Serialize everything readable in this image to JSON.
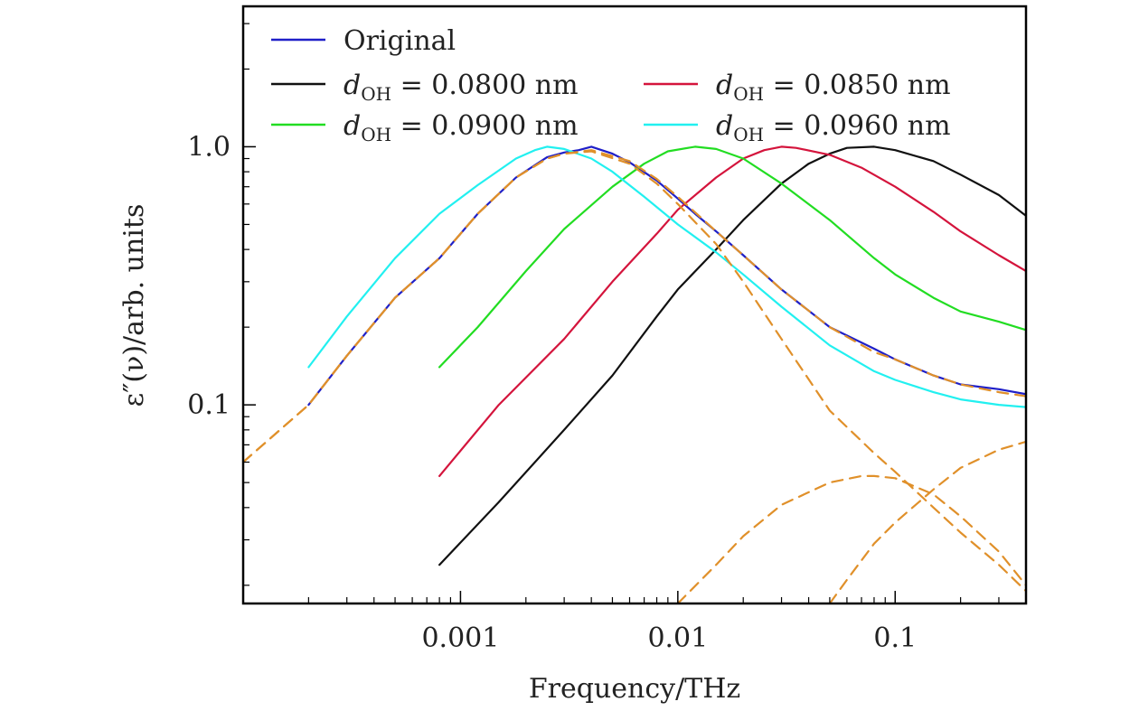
{
  "chart_data": {
    "type": "line",
    "title": "",
    "xlabel": "Frequency/THz",
    "ylabel": "ε″(ν)/arb. units",
    "x_scale": "log",
    "y_scale": "log",
    "xlim": [
      0.0001,
      0.4
    ],
    "ylim": [
      0.017,
      3.5
    ],
    "grid": false,
    "legend_position": "top",
    "x_ticks": [
      {
        "value": 0.001,
        "label": "0.001"
      },
      {
        "value": 0.01,
        "label": "0.01"
      },
      {
        "value": 0.1,
        "label": "0.1"
      }
    ],
    "y_ticks": [
      {
        "value": 0.1,
        "label": "0.1"
      },
      {
        "value": 1.0,
        "label": "1.0"
      }
    ],
    "series": [
      {
        "name": "Original",
        "name_base": "",
        "name_rest": "Original",
        "color": "#1f1fc8",
        "style": "solid",
        "x": [
          0.0002,
          0.0003,
          0.0005,
          0.0008,
          0.0012,
          0.0018,
          0.0025,
          0.003,
          0.0035,
          0.004,
          0.005,
          0.006,
          0.008,
          0.01,
          0.012,
          0.015,
          0.02,
          0.03,
          0.05,
          0.08,
          0.1,
          0.15,
          0.2,
          0.3,
          0.4
        ],
        "y": [
          0.1,
          0.155,
          0.26,
          0.37,
          0.55,
          0.76,
          0.91,
          0.95,
          0.97,
          1.0,
          0.94,
          0.87,
          0.74,
          0.63,
          0.55,
          0.47,
          0.38,
          0.28,
          0.2,
          0.165,
          0.15,
          0.13,
          0.12,
          0.115,
          0.11
        ]
      },
      {
        "name": "d_OH = 0.0800 nm",
        "name_base": "d",
        "name_sub": "OH",
        "name_rest": " = 0.0800 nm",
        "color": "#111111",
        "style": "solid",
        "x": [
          0.0008,
          0.0015,
          0.003,
          0.005,
          0.008,
          0.01,
          0.015,
          0.02,
          0.03,
          0.04,
          0.05,
          0.06,
          0.08,
          0.1,
          0.15,
          0.2,
          0.3,
          0.4
        ],
        "y": [
          0.024,
          0.042,
          0.08,
          0.13,
          0.22,
          0.28,
          0.4,
          0.52,
          0.72,
          0.86,
          0.94,
          0.99,
          1.0,
          0.97,
          0.88,
          0.78,
          0.65,
          0.54
        ]
      },
      {
        "name": "d_OH = 0.0850 nm",
        "name_base": "d",
        "name_sub": "OH",
        "name_rest": " = 0.0850 nm",
        "color": "#d4143c",
        "style": "solid",
        "x": [
          0.0008,
          0.0015,
          0.003,
          0.005,
          0.008,
          0.01,
          0.015,
          0.02,
          0.025,
          0.03,
          0.035,
          0.05,
          0.07,
          0.1,
          0.15,
          0.2,
          0.3,
          0.4
        ],
        "y": [
          0.053,
          0.1,
          0.18,
          0.3,
          0.46,
          0.57,
          0.76,
          0.9,
          0.97,
          1.0,
          0.99,
          0.93,
          0.83,
          0.7,
          0.56,
          0.47,
          0.38,
          0.33
        ]
      },
      {
        "name": "d_OH = 0.0900 nm",
        "name_base": "d",
        "name_sub": "OH",
        "name_rest": " = 0.0900 nm",
        "color": "#22dd22",
        "style": "solid",
        "x": [
          0.0008,
          0.0012,
          0.002,
          0.003,
          0.005,
          0.007,
          0.009,
          0.012,
          0.015,
          0.02,
          0.03,
          0.05,
          0.08,
          0.1,
          0.15,
          0.2,
          0.3,
          0.4
        ],
        "y": [
          0.14,
          0.2,
          0.33,
          0.48,
          0.7,
          0.86,
          0.96,
          1.0,
          0.98,
          0.9,
          0.72,
          0.52,
          0.37,
          0.32,
          0.26,
          0.23,
          0.21,
          0.195
        ]
      },
      {
        "name": "d_OH = 0.0960 nm",
        "name_base": "d",
        "name_sub": "OH",
        "name_rest": " = 0.0960 nm",
        "color": "#22f0f0",
        "style": "solid",
        "x": [
          0.0002,
          0.0003,
          0.0005,
          0.0008,
          0.0012,
          0.0018,
          0.0022,
          0.0025,
          0.003,
          0.004,
          0.005,
          0.007,
          0.01,
          0.015,
          0.02,
          0.03,
          0.05,
          0.08,
          0.1,
          0.15,
          0.2,
          0.3,
          0.4
        ],
        "y": [
          0.14,
          0.22,
          0.37,
          0.55,
          0.71,
          0.9,
          0.97,
          1.0,
          0.98,
          0.9,
          0.8,
          0.64,
          0.5,
          0.39,
          0.32,
          0.24,
          0.17,
          0.135,
          0.125,
          0.112,
          0.105,
          0.1,
          0.098
        ]
      },
      {
        "name": "",
        "color": "#e0902a",
        "style": "dashed",
        "x": [
          0.0001,
          0.0002,
          0.0003,
          0.0005,
          0.0008,
          0.0012,
          0.0018,
          0.0025,
          0.003,
          0.004,
          0.006,
          0.008,
          0.01,
          0.015,
          0.02,
          0.03,
          0.05,
          0.08,
          0.1,
          0.15,
          0.2,
          0.3,
          0.4
        ],
        "y": [
          0.06,
          0.1,
          0.155,
          0.26,
          0.37,
          0.55,
          0.76,
          0.9,
          0.94,
          0.97,
          0.88,
          0.75,
          0.64,
          0.47,
          0.38,
          0.28,
          0.2,
          0.16,
          0.15,
          0.13,
          0.12,
          0.112,
          0.108
        ]
      },
      {
        "name": "",
        "color": "#e0902a",
        "style": "dashed",
        "x": [
          0.0001,
          0.0002,
          0.0003,
          0.0005,
          0.0008,
          0.0012,
          0.0018,
          0.0025,
          0.003,
          0.004,
          0.006,
          0.008,
          0.01,
          0.015,
          0.02,
          0.03,
          0.05,
          0.08,
          0.1,
          0.15,
          0.2,
          0.3,
          0.4
        ],
        "y": [
          0.06,
          0.1,
          0.155,
          0.26,
          0.37,
          0.55,
          0.76,
          0.9,
          0.94,
          0.96,
          0.86,
          0.72,
          0.6,
          0.42,
          0.3,
          0.18,
          0.095,
          0.065,
          0.055,
          0.04,
          0.032,
          0.024,
          0.019
        ]
      },
      {
        "name": "",
        "color": "#e0902a",
        "style": "dashed",
        "x": [
          0.01,
          0.015,
          0.02,
          0.03,
          0.05,
          0.07,
          0.08,
          0.1,
          0.15,
          0.2,
          0.3,
          0.4
        ],
        "y": [
          0.017,
          0.024,
          0.031,
          0.041,
          0.05,
          0.053,
          0.053,
          0.052,
          0.045,
          0.037,
          0.027,
          0.02
        ]
      },
      {
        "name": "",
        "color": "#e0902a",
        "style": "dashed",
        "x": [
          0.05,
          0.06,
          0.08,
          0.1,
          0.15,
          0.2,
          0.3,
          0.4
        ],
        "y": [
          0.017,
          0.021,
          0.029,
          0.035,
          0.047,
          0.057,
          0.067,
          0.072
        ]
      }
    ]
  }
}
